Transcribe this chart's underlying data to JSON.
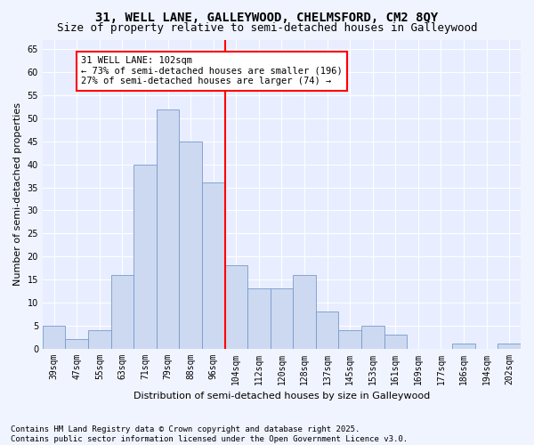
{
  "title": "31, WELL LANE, GALLEYWOOD, CHELMSFORD, CM2 8QY",
  "subtitle": "Size of property relative to semi-detached houses in Galleywood",
  "xlabel": "Distribution of semi-detached houses by size in Galleywood",
  "ylabel": "Number of semi-detached properties",
  "bin_labels": [
    "39sqm",
    "47sqm",
    "55sqm",
    "63sqm",
    "71sqm",
    "79sqm",
    "88sqm",
    "96sqm",
    "104sqm",
    "112sqm",
    "120sqm",
    "128sqm",
    "137sqm",
    "145sqm",
    "153sqm",
    "161sqm",
    "169sqm",
    "177sqm",
    "186sqm",
    "194sqm",
    "202sqm"
  ],
  "bar_values": [
    5,
    2,
    4,
    16,
    40,
    52,
    45,
    36,
    18,
    13,
    13,
    16,
    8,
    4,
    5,
    3,
    0,
    0,
    1,
    0,
    1
  ],
  "bar_color": "#ccd9f0",
  "bar_edge_color": "#7799cc",
  "vline_x_idx": 8,
  "vline_color": "red",
  "annotation_text": "31 WELL LANE: 102sqm\n← 73% of semi-detached houses are smaller (196)\n27% of semi-detached houses are larger (74) →",
  "annotation_box_facecolor": "white",
  "annotation_box_edgecolor": "red",
  "ylim": [
    0,
    67
  ],
  "yticks": [
    0,
    5,
    10,
    15,
    20,
    25,
    30,
    35,
    40,
    45,
    50,
    55,
    60,
    65
  ],
  "footnote": "Contains HM Land Registry data © Crown copyright and database right 2025.\nContains public sector information licensed under the Open Government Licence v3.0.",
  "fig_facecolor": "#f0f4ff",
  "plot_facecolor": "#e8eeff",
  "title_fontsize": 10,
  "subtitle_fontsize": 9,
  "axis_label_fontsize": 8,
  "tick_fontsize": 7,
  "annotation_fontsize": 7.5,
  "footnote_fontsize": 6.5,
  "ylabel_fontsize": 8
}
